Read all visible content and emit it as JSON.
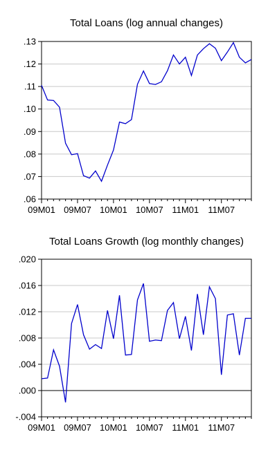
{
  "chart_data": [
    {
      "type": "line",
      "title": "Total Loans (log annual changes)",
      "xlabel": "",
      "ylabel": "",
      "x_tick_labels": [
        "09M01",
        "09M07",
        "10M01",
        "10M07",
        "11M01",
        "11M07"
      ],
      "y_tick_labels": [
        ".13",
        ".12",
        ".11",
        ".10",
        ".09",
        ".08",
        ".07",
        ".06"
      ],
      "ylim": [
        0.06,
        0.13
      ],
      "grid": true,
      "line_color": "#0000cc",
      "x": [
        "2009-01",
        "2009-02",
        "2009-03",
        "2009-04",
        "2009-05",
        "2009-06",
        "2009-07",
        "2009-08",
        "2009-09",
        "2009-10",
        "2009-11",
        "2009-12",
        "2010-01",
        "2010-02",
        "2010-03",
        "2010-04",
        "2010-05",
        "2010-06",
        "2010-07",
        "2010-08",
        "2010-09",
        "2010-10",
        "2010-11",
        "2010-12",
        "2011-01",
        "2011-02",
        "2011-03",
        "2011-04",
        "2011-05",
        "2011-06",
        "2011-07",
        "2011-08",
        "2011-09",
        "2011-10",
        "2011-11",
        "2011-12"
      ],
      "series": [
        {
          "values": [
            0.1105,
            0.104,
            0.1038,
            0.1008,
            0.0848,
            0.0797,
            0.0802,
            0.0704,
            0.0693,
            0.0725,
            0.0679,
            0.0751,
            0.0818,
            0.0942,
            0.0935,
            0.0953,
            0.111,
            0.1169,
            0.1113,
            0.1109,
            0.1121,
            0.117,
            0.124,
            0.12,
            0.123,
            0.1149,
            0.124,
            0.1268,
            0.129,
            0.127,
            0.1215,
            0.1253,
            0.1295,
            0.123,
            0.1205,
            0.122
          ]
        }
      ]
    },
    {
      "type": "line",
      "title": "Total Loans Growth (log monthly changes)",
      "xlabel": "",
      "ylabel": "",
      "x_tick_labels": [
        "09M01",
        "09M07",
        "10M01",
        "10M07",
        "11M01",
        "11M07"
      ],
      "y_tick_labels": [
        ".020",
        ".016",
        ".012",
        ".008",
        ".004",
        ".000",
        "-.004"
      ],
      "ylim": [
        -0.004,
        0.02
      ],
      "grid": true,
      "line_color": "#0000cc",
      "x": [
        "2009-01",
        "2009-02",
        "2009-03",
        "2009-04",
        "2009-05",
        "2009-06",
        "2009-07",
        "2009-08",
        "2009-09",
        "2009-10",
        "2009-11",
        "2009-12",
        "2010-01",
        "2010-02",
        "2010-03",
        "2010-04",
        "2010-05",
        "2010-06",
        "2010-07",
        "2010-08",
        "2010-09",
        "2010-10",
        "2010-11",
        "2010-12",
        "2011-01",
        "2011-02",
        "2011-03",
        "2011-04",
        "2011-05",
        "2011-06",
        "2011-07",
        "2011-08",
        "2011-09",
        "2011-10",
        "2011-11",
        "2011-12"
      ],
      "series": [
        {
          "values": [
            0.0018,
            0.0019,
            0.0062,
            0.0037,
            -0.0018,
            0.0102,
            0.0131,
            0.0085,
            0.0063,
            0.007,
            0.0064,
            0.0122,
            0.0079,
            0.0145,
            0.0054,
            0.0055,
            0.0138,
            0.0163,
            0.0075,
            0.0077,
            0.0076,
            0.0122,
            0.0134,
            0.0079,
            0.0113,
            0.0061,
            0.0147,
            0.0085,
            0.0158,
            0.014,
            0.0024,
            0.0115,
            0.0117,
            0.0054,
            0.011,
            0.011
          ]
        }
      ]
    }
  ]
}
